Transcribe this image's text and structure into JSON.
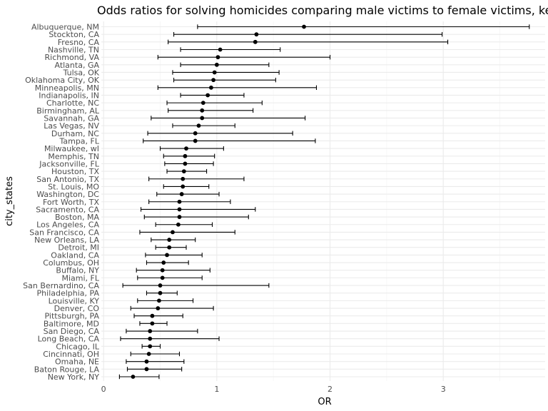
{
  "chart_data": {
    "type": "scatter",
    "title": "Odds ratios for solving homicides comparing male victims to female victims, keep",
    "xlabel": "OR",
    "ylabel": "city_states",
    "xlim": [
      -0.02,
      3.9
    ],
    "xticks": [
      0,
      1,
      2,
      3
    ],
    "grid": true,
    "legend": "none",
    "colors": {
      "point": "#000000",
      "errorbar": "#000000",
      "grid_major": "#ebebeb",
      "grid_minor": "#f5f5f5"
    },
    "series": [
      {
        "values": [
          {
            "city": "Albuquerque, NM",
            "or": 1.77,
            "lo": 0.83,
            "hi": 3.76
          },
          {
            "city": "Stockton, CA",
            "or": 1.35,
            "lo": 0.62,
            "hi": 2.99
          },
          {
            "city": "Fresno, CA",
            "or": 1.34,
            "lo": 0.57,
            "hi": 3.04
          },
          {
            "city": "Nashville, TN",
            "or": 1.03,
            "lo": 0.68,
            "hi": 1.56
          },
          {
            "city": "Richmond, VA",
            "or": 1.01,
            "lo": 0.48,
            "hi": 2.0
          },
          {
            "city": "Atlanta, GA",
            "or": 1.0,
            "lo": 0.68,
            "hi": 1.46
          },
          {
            "city": "Tulsa, OK",
            "or": 0.98,
            "lo": 0.61,
            "hi": 1.55
          },
          {
            "city": "Oklahoma City, OK",
            "or": 0.97,
            "lo": 0.62,
            "hi": 1.52
          },
          {
            "city": "Minneapolis, MN",
            "or": 0.95,
            "lo": 0.48,
            "hi": 1.88
          },
          {
            "city": "Indianapolis, IN",
            "or": 0.92,
            "lo": 0.68,
            "hi": 1.24
          },
          {
            "city": "Charlotte, NC",
            "or": 0.88,
            "lo": 0.56,
            "hi": 1.4
          },
          {
            "city": "Birmingham, AL",
            "or": 0.87,
            "lo": 0.57,
            "hi": 1.32
          },
          {
            "city": "Savannah, GA",
            "or": 0.87,
            "lo": 0.42,
            "hi": 1.78
          },
          {
            "city": "Las Vegas, NV",
            "or": 0.84,
            "lo": 0.61,
            "hi": 1.16
          },
          {
            "city": "Durham, NC",
            "or": 0.81,
            "lo": 0.39,
            "hi": 1.67
          },
          {
            "city": "Tampa, FL",
            "or": 0.81,
            "lo": 0.35,
            "hi": 1.87
          },
          {
            "city": "Milwaukee, wI",
            "or": 0.73,
            "lo": 0.5,
            "hi": 1.06
          },
          {
            "city": "Memphis, TN",
            "or": 0.72,
            "lo": 0.53,
            "hi": 0.98
          },
          {
            "city": "Jacksonville, FL",
            "or": 0.72,
            "lo": 0.54,
            "hi": 0.97
          },
          {
            "city": "Houston, TX",
            "or": 0.71,
            "lo": 0.56,
            "hi": 0.91
          },
          {
            "city": "San Antonio, TX",
            "or": 0.7,
            "lo": 0.4,
            "hi": 1.24
          },
          {
            "city": "St. Louis, MO",
            "or": 0.7,
            "lo": 0.53,
            "hi": 0.93
          },
          {
            "city": "Washington, DC",
            "or": 0.69,
            "lo": 0.47,
            "hi": 1.02
          },
          {
            "city": "Fort Worth, TX",
            "or": 0.67,
            "lo": 0.4,
            "hi": 1.12
          },
          {
            "city": "Sacramento, CA",
            "or": 0.67,
            "lo": 0.33,
            "hi": 1.34
          },
          {
            "city": "Boston, MA",
            "or": 0.67,
            "lo": 0.36,
            "hi": 1.28
          },
          {
            "city": "Los Angeles, CA",
            "or": 0.66,
            "lo": 0.46,
            "hi": 0.96
          },
          {
            "city": "San Francisco, CA",
            "or": 0.61,
            "lo": 0.32,
            "hi": 1.16
          },
          {
            "city": "New Orleans, LA",
            "or": 0.58,
            "lo": 0.42,
            "hi": 0.81
          },
          {
            "city": "Detroit, MI",
            "or": 0.58,
            "lo": 0.46,
            "hi": 0.73
          },
          {
            "city": "Oakland, CA",
            "or": 0.56,
            "lo": 0.37,
            "hi": 0.87
          },
          {
            "city": "Columbus, OH",
            "or": 0.53,
            "lo": 0.38,
            "hi": 0.75
          },
          {
            "city": "Buffalo, NY",
            "or": 0.52,
            "lo": 0.29,
            "hi": 0.94
          },
          {
            "city": "Miami, FL",
            "or": 0.52,
            "lo": 0.3,
            "hi": 0.87
          },
          {
            "city": "San Bernardino, CA",
            "or": 0.5,
            "lo": 0.17,
            "hi": 1.46
          },
          {
            "city": "Philadelphia, PA",
            "or": 0.5,
            "lo": 0.38,
            "hi": 0.65
          },
          {
            "city": "Louisville, KY",
            "or": 0.49,
            "lo": 0.3,
            "hi": 0.79
          },
          {
            "city": "Denver, CO",
            "or": 0.48,
            "lo": 0.24,
            "hi": 0.97
          },
          {
            "city": "Pittsburgh, PA",
            "or": 0.43,
            "lo": 0.27,
            "hi": 0.7
          },
          {
            "city": "Baltimore, MD",
            "or": 0.43,
            "lo": 0.32,
            "hi": 0.56
          },
          {
            "city": "San Diego, CA",
            "or": 0.41,
            "lo": 0.2,
            "hi": 0.83
          },
          {
            "city": "Long Beach, CA",
            "or": 0.41,
            "lo": 0.15,
            "hi": 1.02
          },
          {
            "city": "Chicago, IL",
            "or": 0.41,
            "lo": 0.34,
            "hi": 0.5
          },
          {
            "city": "Cincinnati, OH",
            "or": 0.4,
            "lo": 0.24,
            "hi": 0.67
          },
          {
            "city": "Omaha, NE",
            "or": 0.38,
            "lo": 0.2,
            "hi": 0.71
          },
          {
            "city": "Baton Rouge, LA",
            "or": 0.38,
            "lo": 0.21,
            "hi": 0.69
          },
          {
            "city": "New York, NY",
            "or": 0.26,
            "lo": 0.14,
            "hi": 0.49
          }
        ]
      }
    ]
  }
}
